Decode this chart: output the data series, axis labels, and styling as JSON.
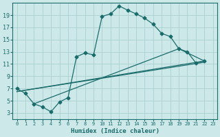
{
  "xlabel": "Humidex (Indice chaleur)",
  "bg_color": "#cce8e8",
  "grid_color": "#aad0d0",
  "line_color": "#1a6b6b",
  "xlim": [
    -0.5,
    23.5
  ],
  "ylim": [
    2,
    21
  ],
  "xticks": [
    0,
    1,
    2,
    3,
    4,
    5,
    6,
    7,
    8,
    9,
    10,
    11,
    12,
    13,
    14,
    15,
    16,
    17,
    18,
    19,
    20,
    21,
    22,
    23
  ],
  "yticks": [
    3,
    5,
    7,
    9,
    11,
    13,
    15,
    17,
    19
  ],
  "curve1_x": [
    0,
    1,
    2,
    3,
    4,
    5,
    6,
    7,
    8,
    9,
    10,
    11,
    12,
    13,
    14,
    15,
    16,
    17,
    18,
    19,
    20,
    21,
    22
  ],
  "curve1_y": [
    7,
    6.2,
    4.5,
    4.0,
    3.2,
    4.8,
    5.5,
    12.2,
    12.8,
    12.5,
    18.8,
    19.2,
    20.5,
    19.8,
    19.2,
    18.5,
    17.5,
    16.0,
    15.5,
    13.5,
    13.0,
    11.2,
    11.5
  ],
  "line1_x": [
    0,
    22
  ],
  "line1_y": [
    6.5,
    11.3
  ],
  "line2_x": [
    0,
    22
  ],
  "line2_y": [
    6.5,
    11.5
  ],
  "line3_x": [
    2,
    19,
    22
  ],
  "line3_y": [
    4.5,
    13.5,
    11.5
  ]
}
